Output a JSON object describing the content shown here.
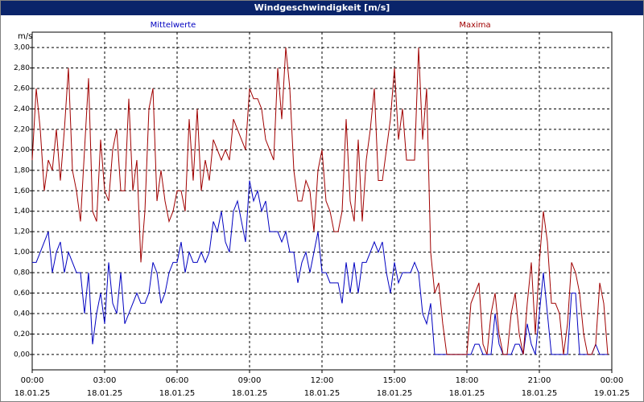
{
  "window": {
    "title": "Windgeschwindigkeit [m/s]"
  },
  "chart_data": {
    "type": "line",
    "y_label": "m/s",
    "x": [
      0,
      10,
      20,
      30,
      40,
      50,
      60,
      70,
      80,
      90,
      100,
      110,
      120,
      130,
      140,
      150,
      160,
      170,
      180,
      190,
      200,
      210,
      220,
      230,
      240,
      250,
      260,
      270,
      280,
      290,
      300,
      310,
      320,
      330,
      340,
      350,
      360,
      370,
      380,
      390,
      400,
      410,
      420,
      430,
      440,
      450,
      460,
      470,
      480,
      490,
      500,
      510,
      520,
      530,
      540,
      550,
      560,
      570,
      580,
      590,
      600,
      610,
      620,
      630,
      640,
      650,
      660,
      670,
      680,
      690,
      700,
      710,
      720,
      730,
      740,
      750,
      760,
      770,
      780,
      790,
      800,
      810,
      820,
      830,
      840,
      850,
      860,
      870,
      880,
      890,
      900,
      910,
      920,
      930,
      940,
      950,
      960,
      970,
      980,
      990,
      1000,
      1010,
      1020,
      1030,
      1040,
      1050,
      1060,
      1070,
      1080,
      1090,
      1100,
      1110,
      1120,
      1130,
      1140,
      1150,
      1160,
      1170,
      1180,
      1190,
      1200,
      1210,
      1220,
      1230,
      1240,
      1250,
      1260,
      1270,
      1280,
      1290,
      1300,
      1310,
      1320,
      1330,
      1340,
      1350,
      1360,
      1370,
      1380,
      1390,
      1400,
      1410,
      1420,
      1430
    ],
    "series": [
      {
        "name": "Mittelwerte",
        "color": "#0000c0",
        "values": [
          0.9,
          0.9,
          1.0,
          1.1,
          1.2,
          0.8,
          1.0,
          1.1,
          0.8,
          1.0,
          0.9,
          0.8,
          0.8,
          0.4,
          0.8,
          0.1,
          0.4,
          0.6,
          0.3,
          0.9,
          0.5,
          0.4,
          0.8,
          0.3,
          0.4,
          0.5,
          0.6,
          0.5,
          0.5,
          0.6,
          0.9,
          0.8,
          0.5,
          0.6,
          0.8,
          0.9,
          0.9,
          1.1,
          0.8,
          1.0,
          0.9,
          0.9,
          1.0,
          0.9,
          1.0,
          1.3,
          1.2,
          1.4,
          1.1,
          1.0,
          1.4,
          1.5,
          1.3,
          1.1,
          1.7,
          1.5,
          1.6,
          1.4,
          1.5,
          1.2,
          1.2,
          1.2,
          1.1,
          1.2,
          1.0,
          1.0,
          0.7,
          0.9,
          1.0,
          0.8,
          1.0,
          1.2,
          0.8,
          0.8,
          0.7,
          0.7,
          0.7,
          0.5,
          0.9,
          0.6,
          0.9,
          0.6,
          0.9,
          0.9,
          1.0,
          1.1,
          1.0,
          1.1,
          0.8,
          0.6,
          0.9,
          0.7,
          0.8,
          0.8,
          0.8,
          0.9,
          0.8,
          0.4,
          0.3,
          0.5,
          0,
          0,
          0,
          0,
          0,
          0,
          0,
          0,
          0,
          0,
          0.1,
          0.1,
          0,
          0,
          0,
          0.4,
          0.1,
          0,
          0,
          0,
          0.1,
          0.1,
          0,
          0.3,
          0.1,
          0,
          0.4,
          0.8,
          0.4,
          0,
          0,
          0,
          0,
          0,
          0.6,
          0.6,
          0,
          0,
          0,
          0,
          0.1,
          0,
          0,
          0
        ]
      },
      {
        "name": "Maxima",
        "color": "#a00000",
        "values": [
          1.9,
          2.6,
          2.2,
          1.6,
          1.9,
          1.8,
          2.2,
          1.7,
          2.2,
          2.8,
          1.8,
          1.6,
          1.3,
          2.0,
          2.7,
          1.4,
          1.3,
          2.1,
          1.6,
          1.5,
          2.0,
          2.2,
          1.6,
          1.6,
          2.5,
          1.6,
          1.9,
          0.9,
          1.4,
          2.4,
          2.6,
          1.5,
          1.8,
          1.5,
          1.3,
          1.4,
          1.6,
          1.6,
          1.4,
          2.3,
          1.7,
          2.4,
          1.6,
          1.9,
          1.7,
          2.1,
          2.0,
          1.9,
          2.0,
          1.9,
          2.3,
          2.2,
          2.1,
          2.0,
          2.6,
          2.5,
          2.5,
          2.4,
          2.1,
          2.0,
          1.9,
          2.8,
          2.3,
          3.0,
          2.6,
          1.8,
          1.5,
          1.5,
          1.7,
          1.6,
          1.2,
          1.8,
          2.0,
          1.5,
          1.4,
          1.2,
          1.2,
          1.4,
          2.3,
          1.5,
          1.3,
          2.1,
          1.3,
          1.9,
          2.2,
          2.6,
          1.7,
          1.7,
          2.0,
          2.3,
          2.8,
          2.1,
          2.4,
          1.9,
          1.9,
          1.9,
          3.0,
          2.1,
          2.6,
          1.0,
          0.6,
          0.7,
          0.3,
          0,
          0,
          0,
          0,
          0,
          0,
          0.5,
          0.6,
          0.7,
          0.1,
          0,
          0.4,
          0.6,
          0.2,
          0,
          0,
          0.4,
          0.6,
          0.2,
          0,
          0.5,
          0.9,
          0.2,
          0.9,
          1.4,
          1.1,
          0.5,
          0.5,
          0.4,
          0,
          0.3,
          0.9,
          0.8,
          0.6,
          0.2,
          0,
          0,
          0.1,
          0.7,
          0.5,
          0
        ]
      }
    ],
    "xlim": [
      0,
      1440
    ],
    "xticks": [
      {
        "value": 0,
        "label": "00:00",
        "date": "18.01.25"
      },
      {
        "value": 180,
        "label": "03:00",
        "date": "18.01.25"
      },
      {
        "value": 360,
        "label": "06:00",
        "date": "18.01.25"
      },
      {
        "value": 540,
        "label": "09:00",
        "date": "18.01.25"
      },
      {
        "value": 720,
        "label": "12:00",
        "date": "18.01.25"
      },
      {
        "value": 900,
        "label": "15:00",
        "date": "18.01.25"
      },
      {
        "value": 1080,
        "label": "18:00",
        "date": "18.01.25"
      },
      {
        "value": 1260,
        "label": "21:00",
        "date": "18.01.25"
      },
      {
        "value": 1440,
        "label": "00:00",
        "date": "19.01.25"
      }
    ],
    "ylim": [
      -0.15,
      3.15
    ],
    "yticks": [
      {
        "value": 0,
        "label": "0,00"
      },
      {
        "value": 0.2,
        "label": "0,20"
      },
      {
        "value": 0.4,
        "label": "0,40"
      },
      {
        "value": 0.6,
        "label": "0,60"
      },
      {
        "value": 0.8,
        "label": "0,80"
      },
      {
        "value": 1.0,
        "label": "1,00"
      },
      {
        "value": 1.2,
        "label": "1,20"
      },
      {
        "value": 1.4,
        "label": "1,40"
      },
      {
        "value": 1.6,
        "label": "1,60"
      },
      {
        "value": 1.8,
        "label": "1,80"
      },
      {
        "value": 2.0,
        "label": "2,00"
      },
      {
        "value": 2.2,
        "label": "2,20"
      },
      {
        "value": 2.4,
        "label": "2,40"
      },
      {
        "value": 2.6,
        "label": "2,60"
      },
      {
        "value": 2.8,
        "label": "2,80"
      },
      {
        "value": 3.0,
        "label": "3,00"
      }
    ],
    "grid": true
  }
}
